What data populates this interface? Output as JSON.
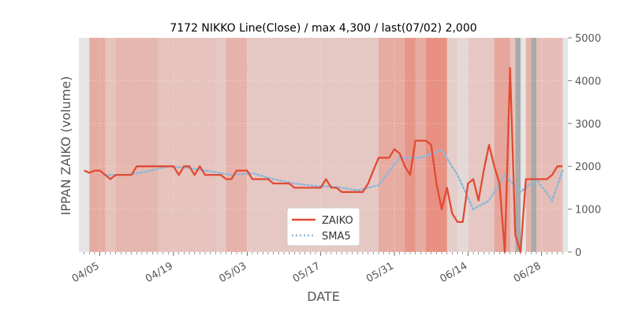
{
  "chart_data": {
    "type": "line",
    "title": "7172 NIKKO Line(Close) / max 4,300 / last(07/02) 2,000",
    "xlabel": "DATE",
    "ylabel": "IPPAN ZAIKO (volume)",
    "ylim": [
      0,
      5000
    ],
    "yticks": [
      0,
      1000,
      2000,
      3000,
      4000,
      5000
    ],
    "ytick_labels": [
      "0",
      "1000",
      "2000",
      "3000",
      "4000",
      "5000"
    ],
    "y_axis_side": "right",
    "xlim": [
      "2020-04-01",
      "2020-07-03"
    ],
    "xticks": [
      "2020-04-05",
      "2020-04-19",
      "2020-05-03",
      "2020-05-17",
      "2020-05-31",
      "2020-06-14",
      "2020-06-28"
    ],
    "xtick_labels": [
      "04/05",
      "04/19",
      "05/03",
      "05/17",
      "05/31",
      "06/14",
      "06/28"
    ],
    "grid": true,
    "legend_position": "bottom-center",
    "colors": {
      "zaiko": "#e24a33",
      "sma5": "#8fb8d9",
      "plot_bg": "#e5e5e5",
      "band_high": "#e8735f",
      "band_grey": "#9a9a9a"
    },
    "series": [
      {
        "name": "ZAIKO",
        "style": "solid",
        "x": [
          "2020-04-02",
          "2020-04-03",
          "2020-04-04",
          "2020-04-05",
          "2020-04-06",
          "2020-04-07",
          "2020-04-08",
          "2020-04-09",
          "2020-04-10",
          "2020-04-11",
          "2020-04-12",
          "2020-04-13",
          "2020-04-14",
          "2020-04-15",
          "2020-04-16",
          "2020-04-17",
          "2020-04-18",
          "2020-04-19",
          "2020-04-20",
          "2020-04-21",
          "2020-04-22",
          "2020-04-23",
          "2020-04-24",
          "2020-04-25",
          "2020-04-26",
          "2020-04-27",
          "2020-04-28",
          "2020-04-29",
          "2020-04-30",
          "2020-05-01",
          "2020-05-02",
          "2020-05-03",
          "2020-05-04",
          "2020-05-05",
          "2020-05-06",
          "2020-05-07",
          "2020-05-08",
          "2020-05-09",
          "2020-05-10",
          "2020-05-11",
          "2020-05-12",
          "2020-05-13",
          "2020-05-14",
          "2020-05-15",
          "2020-05-16",
          "2020-05-17",
          "2020-05-18",
          "2020-05-19",
          "2020-05-20",
          "2020-05-21",
          "2020-05-22",
          "2020-05-23",
          "2020-05-24",
          "2020-05-25",
          "2020-05-26",
          "2020-05-27",
          "2020-05-28",
          "2020-05-29",
          "2020-05-30",
          "2020-05-31",
          "2020-06-01",
          "2020-06-02",
          "2020-06-03",
          "2020-06-04",
          "2020-06-05",
          "2020-06-06",
          "2020-06-07",
          "2020-06-08",
          "2020-06-09",
          "2020-06-10",
          "2020-06-11",
          "2020-06-12",
          "2020-06-13",
          "2020-06-14",
          "2020-06-15",
          "2020-06-16",
          "2020-06-17",
          "2020-06-18",
          "2020-06-19",
          "2020-06-20",
          "2020-06-21",
          "2020-06-22",
          "2020-06-23",
          "2020-06-24",
          "2020-06-25",
          "2020-06-26",
          "2020-06-27",
          "2020-06-28",
          "2020-06-29",
          "2020-06-30",
          "2020-07-01",
          "2020-07-02"
        ],
        "values": [
          1900,
          1850,
          1900,
          1900,
          1800,
          1700,
          1800,
          1800,
          1800,
          1800,
          2000,
          2000,
          2000,
          2000,
          2000,
          2000,
          2000,
          2000,
          1800,
          2000,
          2000,
          1800,
          2000,
          1800,
          1800,
          1800,
          1800,
          1700,
          1700,
          1900,
          1900,
          1900,
          1700,
          1700,
          1700,
          1700,
          1600,
          1600,
          1600,
          1600,
          1500,
          1500,
          1500,
          1500,
          1500,
          1500,
          1700,
          1500,
          1500,
          1400,
          1400,
          1400,
          1400,
          1400,
          1600,
          1900,
          2200,
          2200,
          2200,
          2400,
          2300,
          2000,
          1800,
          2600,
          2600,
          2600,
          2500,
          1600,
          1000,
          1500,
          900,
          700,
          700,
          1600,
          1700,
          1200,
          1900,
          2500,
          2000,
          1600,
          0,
          4300,
          400,
          0,
          1700,
          1700,
          1700,
          1700,
          1700,
          1800,
          2000,
          2000
        ]
      },
      {
        "name": "SMA5",
        "style": "dotted",
        "x": [
          "2020-04-06",
          "2020-04-10",
          "2020-04-14",
          "2020-04-18",
          "2020-04-22",
          "2020-04-26",
          "2020-04-30",
          "2020-05-04",
          "2020-05-08",
          "2020-05-12",
          "2020-05-16",
          "2020-05-20",
          "2020-05-24",
          "2020-05-28",
          "2020-06-01",
          "2020-06-05",
          "2020-06-09",
          "2020-06-12",
          "2020-06-15",
          "2020-06-18",
          "2020-06-21",
          "2020-06-24",
          "2020-06-27",
          "2020-06-30",
          "2020-07-02"
        ],
        "values": [
          1800,
          1800,
          1880,
          2000,
          1960,
          1880,
          1800,
          1840,
          1700,
          1600,
          1540,
          1520,
          1440,
          1560,
          2200,
          2200,
          2380,
          1800,
          1000,
          1200,
          1800,
          1400,
          1700,
          1200,
          1900
        ]
      }
    ],
    "bands": [
      {
        "x": [
          "2020-04-03",
          "2020-04-06"
        ],
        "intensity": 0.5
      },
      {
        "x": [
          "2020-04-06",
          "2020-04-08"
        ],
        "intensity": 0.3
      },
      {
        "x": [
          "2020-04-08",
          "2020-04-16"
        ],
        "intensity": 0.4
      },
      {
        "x": [
          "2020-04-16",
          "2020-04-27"
        ],
        "intensity": 0.3
      },
      {
        "x": [
          "2020-04-27",
          "2020-04-29"
        ],
        "intensity": 0.25
      },
      {
        "x": [
          "2020-04-29",
          "2020-05-03"
        ],
        "intensity": 0.45
      },
      {
        "x": [
          "2020-05-03",
          "2020-05-28"
        ],
        "intensity": 0.25
      },
      {
        "x": [
          "2020-05-28",
          "2020-06-02"
        ],
        "intensity": 0.5
      },
      {
        "x": [
          "2020-06-02",
          "2020-06-04"
        ],
        "intensity": 0.7
      },
      {
        "x": [
          "2020-06-04",
          "2020-06-06"
        ],
        "intensity": 0.5
      },
      {
        "x": [
          "2020-06-06",
          "2020-06-10"
        ],
        "intensity": 0.75
      },
      {
        "x": [
          "2020-06-10",
          "2020-06-12"
        ],
        "intensity": 0.2
      },
      {
        "x": [
          "2020-06-12",
          "2020-06-14"
        ],
        "intensity": 0.1
      },
      {
        "x": [
          "2020-06-14",
          "2020-06-19"
        ],
        "intensity": 0.25
      },
      {
        "x": [
          "2020-06-19",
          "2020-06-22"
        ],
        "intensity": 0.55
      },
      {
        "x": [
          "2020-06-22",
          "2020-06-23"
        ],
        "intensity": 0.3
      },
      {
        "x": [
          "2020-06-25",
          "2020-06-26"
        ],
        "intensity": 0.45
      },
      {
        "x": [
          "2020-06-27",
          "2020-07-02"
        ],
        "intensity": 0.35
      }
    ],
    "grey_bands": [
      {
        "x": [
          "2020-06-23",
          "2020-06-24"
        ]
      },
      {
        "x": [
          "2020-06-26",
          "2020-06-27"
        ]
      }
    ]
  }
}
